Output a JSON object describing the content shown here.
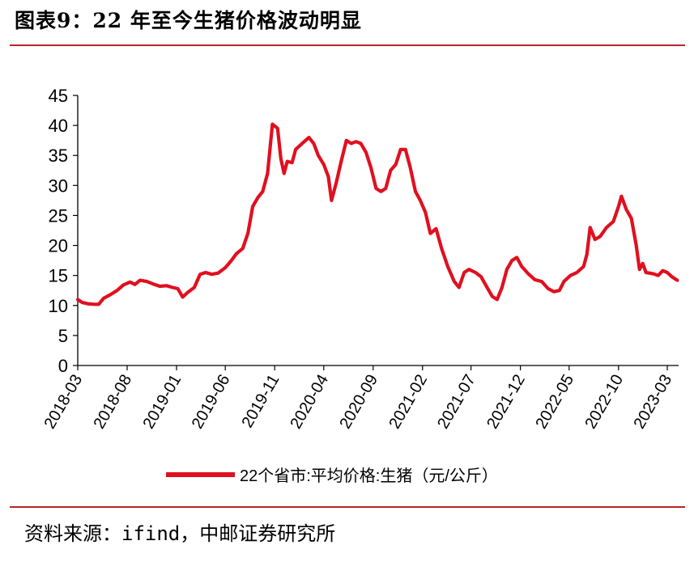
{
  "header": {
    "title": "图表9：22 年至今生猪价格波动明显"
  },
  "footer": {
    "source": "资料来源：ifind，中邮证券研究所"
  },
  "chart_data": {
    "type": "line",
    "title": "图表9：22 年至今生猪价格波动明显",
    "xlabel": "",
    "ylabel": "",
    "ylim": [
      0,
      45
    ],
    "yticks": [
      0,
      5,
      10,
      15,
      20,
      25,
      30,
      35,
      40,
      45
    ],
    "xticks": [
      "2018-03",
      "2018-08",
      "2019-01",
      "2019-06",
      "2019-11",
      "2020-04",
      "2020-09",
      "2021-02",
      "2021-07",
      "2021-12",
      "2022-05",
      "2022-10",
      "2023-03"
    ],
    "grid": false,
    "legend": "bottom",
    "colors": {
      "series": "#e0101f",
      "axis": "#000000",
      "rule": "#b8252a"
    },
    "series": [
      {
        "name": "22个省市:平均价格:生猪（元/公斤）",
        "points": [
          [
            "2018-03-01",
            11.0
          ],
          [
            "2018-03-15",
            10.5
          ],
          [
            "2018-04-01",
            10.3
          ],
          [
            "2018-04-20",
            10.2
          ],
          [
            "2018-05-05",
            10.2
          ],
          [
            "2018-05-20",
            11.2
          ],
          [
            "2018-06-10",
            11.8
          ],
          [
            "2018-07-01",
            12.5
          ],
          [
            "2018-07-20",
            13.4
          ],
          [
            "2018-08-10",
            13.9
          ],
          [
            "2018-08-25",
            13.5
          ],
          [
            "2018-09-10",
            14.2
          ],
          [
            "2018-10-01",
            14.0
          ],
          [
            "2018-10-20",
            13.6
          ],
          [
            "2018-11-10",
            13.2
          ],
          [
            "2018-12-01",
            13.3
          ],
          [
            "2018-12-20",
            13.0
          ],
          [
            "2019-01-05",
            12.8
          ],
          [
            "2019-01-20",
            11.4
          ],
          [
            "2019-02-05",
            12.2
          ],
          [
            "2019-02-25",
            13.0
          ],
          [
            "2019-03-15",
            15.2
          ],
          [
            "2019-04-01",
            15.5
          ],
          [
            "2019-04-20",
            15.2
          ],
          [
            "2019-05-10",
            15.4
          ],
          [
            "2019-06-01",
            16.3
          ],
          [
            "2019-06-20",
            17.5
          ],
          [
            "2019-07-05",
            18.6
          ],
          [
            "2019-07-25",
            19.5
          ],
          [
            "2019-08-10",
            22.0
          ],
          [
            "2019-08-25",
            26.5
          ],
          [
            "2019-09-10",
            28.0
          ],
          [
            "2019-09-25",
            29.0
          ],
          [
            "2019-10-10",
            32.0
          ],
          [
            "2019-10-25",
            40.2
          ],
          [
            "2019-11-10",
            39.5
          ],
          [
            "2019-11-20",
            34.5
          ],
          [
            "2019-11-30",
            32.0
          ],
          [
            "2019-12-10",
            34.0
          ],
          [
            "2019-12-25",
            33.8
          ],
          [
            "2020-01-05",
            36.0
          ],
          [
            "2020-01-25",
            37.0
          ],
          [
            "2020-02-15",
            38.0
          ],
          [
            "2020-03-01",
            37.0
          ],
          [
            "2020-03-15",
            35.0
          ],
          [
            "2020-04-01",
            33.5
          ],
          [
            "2020-04-15",
            31.5
          ],
          [
            "2020-04-25",
            27.5
          ],
          [
            "2020-05-10",
            30.5
          ],
          [
            "2020-05-25",
            34.0
          ],
          [
            "2020-06-10",
            37.5
          ],
          [
            "2020-06-25",
            37.0
          ],
          [
            "2020-07-10",
            37.3
          ],
          [
            "2020-07-25",
            37.0
          ],
          [
            "2020-08-10",
            35.5
          ],
          [
            "2020-08-25",
            33.0
          ],
          [
            "2020-09-10",
            29.5
          ],
          [
            "2020-09-25",
            29.0
          ],
          [
            "2020-10-10",
            29.5
          ],
          [
            "2020-10-25",
            32.5
          ],
          [
            "2020-11-10",
            33.5
          ],
          [
            "2020-11-25",
            36.0
          ],
          [
            "2020-12-10",
            36.0
          ],
          [
            "2020-12-25",
            33.0
          ],
          [
            "2021-01-10",
            29.0
          ],
          [
            "2021-01-25",
            27.5
          ],
          [
            "2021-02-10",
            25.5
          ],
          [
            "2021-02-25",
            22.0
          ],
          [
            "2021-03-15",
            22.8
          ],
          [
            "2021-04-01",
            19.5
          ],
          [
            "2021-04-20",
            16.5
          ],
          [
            "2021-05-10",
            14.0
          ],
          [
            "2021-05-25",
            13.0
          ],
          [
            "2021-06-10",
            15.5
          ],
          [
            "2021-06-25",
            16.0
          ],
          [
            "2021-07-15",
            15.5
          ],
          [
            "2021-08-01",
            14.8
          ],
          [
            "2021-08-20",
            13.0
          ],
          [
            "2021-09-05",
            11.5
          ],
          [
            "2021-09-20",
            11.0
          ],
          [
            "2021-10-05",
            13.0
          ],
          [
            "2021-10-20",
            16.0
          ],
          [
            "2021-11-05",
            17.5
          ],
          [
            "2021-11-20",
            18.0
          ],
          [
            "2021-12-05",
            16.5
          ],
          [
            "2021-12-25",
            15.3
          ],
          [
            "2022-01-15",
            14.3
          ],
          [
            "2022-02-05",
            14.0
          ],
          [
            "2022-02-25",
            12.8
          ],
          [
            "2022-03-15",
            12.3
          ],
          [
            "2022-04-01",
            12.5
          ],
          [
            "2022-04-15",
            14.0
          ],
          [
            "2022-05-05",
            15.0
          ],
          [
            "2022-05-25",
            15.5
          ],
          [
            "2022-06-15",
            16.5
          ],
          [
            "2022-06-25",
            18.5
          ],
          [
            "2022-07-05",
            23.0
          ],
          [
            "2022-07-20",
            21.0
          ],
          [
            "2022-08-05",
            21.5
          ],
          [
            "2022-08-25",
            23.0
          ],
          [
            "2022-09-15",
            24.0
          ],
          [
            "2022-10-01",
            26.5
          ],
          [
            "2022-10-10",
            28.2
          ],
          [
            "2022-10-25",
            26.0
          ],
          [
            "2022-11-10",
            24.5
          ],
          [
            "2022-11-25",
            20.0
          ],
          [
            "2022-12-05",
            16.0
          ],
          [
            "2022-12-15",
            17.0
          ],
          [
            "2022-12-25",
            15.5
          ],
          [
            "2023-01-15",
            15.3
          ],
          [
            "2023-02-01",
            15.0
          ],
          [
            "2023-02-15",
            15.8
          ],
          [
            "2023-03-01",
            15.5
          ],
          [
            "2023-03-15",
            14.8
          ],
          [
            "2023-04-01",
            14.2
          ]
        ]
      }
    ]
  }
}
